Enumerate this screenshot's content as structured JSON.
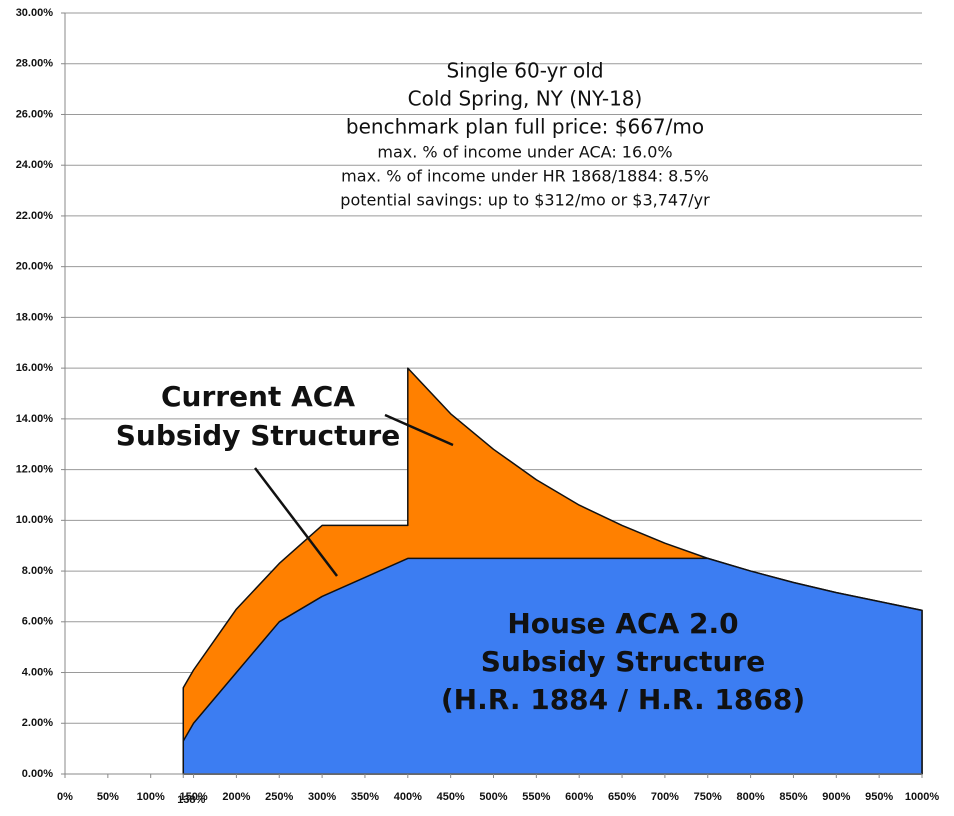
{
  "chart_data": {
    "type": "area",
    "ylim": [
      0,
      30
    ],
    "yticks": [
      {
        "value": 0,
        "label": "0.00%"
      },
      {
        "value": 2,
        "label": "2.00%"
      },
      {
        "value": 4,
        "label": "4.00%"
      },
      {
        "value": 6,
        "label": "6.00%"
      },
      {
        "value": 8,
        "label": "8.00%"
      },
      {
        "value": 10,
        "label": "10.00%"
      },
      {
        "value": 12,
        "label": "12.00%"
      },
      {
        "value": 14,
        "label": "14.00%"
      },
      {
        "value": 16,
        "label": "16.00%"
      },
      {
        "value": 18,
        "label": "18.00%"
      },
      {
        "value": 20,
        "label": "20.00%"
      },
      {
        "value": 22,
        "label": "22.00%"
      },
      {
        "value": 24,
        "label": "24.00%"
      },
      {
        "value": 26,
        "label": "26.00%"
      },
      {
        "value": 28,
        "label": "28.00%"
      },
      {
        "value": 30,
        "label": "30.00%"
      }
    ],
    "xlim": [
      0,
      1000
    ],
    "xticks": [
      {
        "value": 0,
        "label": "0%"
      },
      {
        "value": 50,
        "label": "50%"
      },
      {
        "value": 100,
        "label": "100%"
      },
      {
        "value": 138,
        "label": "138%"
      },
      {
        "value": 150,
        "label": "150%"
      },
      {
        "value": 200,
        "label": "200%"
      },
      {
        "value": 250,
        "label": "250%"
      },
      {
        "value": 300,
        "label": "300%"
      },
      {
        "value": 350,
        "label": "350%"
      },
      {
        "value": 400,
        "label": "400%"
      },
      {
        "value": 450,
        "label": "450%"
      },
      {
        "value": 500,
        "label": "500%"
      },
      {
        "value": 550,
        "label": "550%"
      },
      {
        "value": 600,
        "label": "600%"
      },
      {
        "value": 650,
        "label": "650%"
      },
      {
        "value": 700,
        "label": "700%"
      },
      {
        "value": 750,
        "label": "750%"
      },
      {
        "value": 800,
        "label": "800%"
      },
      {
        "value": 850,
        "label": "850%"
      },
      {
        "value": 900,
        "label": "900%"
      },
      {
        "value": 950,
        "label": "950%"
      },
      {
        "value": 1000,
        "label": "1000%"
      }
    ],
    "grid": true,
    "series": [
      {
        "color": "#ff8000",
        "x": [
          138,
          150,
          200,
          250,
          300,
          350,
          400,
          400,
          450,
          500,
          550,
          600,
          650,
          700,
          750,
          800,
          850,
          900,
          950,
          1000
        ],
        "values": [
          3.4,
          4.1,
          6.5,
          8.3,
          9.8,
          9.8,
          9.8,
          16.0,
          14.2,
          12.8,
          11.6,
          10.6,
          9.8,
          9.1,
          8.5,
          8.0,
          7.55,
          7.15,
          6.8,
          6.45
        ]
      },
      {
        "color": "#3c7df2",
        "x": [
          138,
          150,
          200,
          250,
          300,
          350,
          400,
          450,
          500,
          550,
          600,
          650,
          700,
          750,
          800,
          850,
          900,
          950,
          1000
        ],
        "values": [
          1.3,
          2.0,
          4.0,
          6.0,
          7.0,
          7.75,
          8.5,
          8.5,
          8.5,
          8.5,
          8.5,
          8.5,
          8.5,
          8.5,
          8.0,
          7.55,
          7.15,
          6.8,
          6.45
        ]
      }
    ],
    "annotations": [
      {
        "lines": [
          "Single 60-yr old",
          "Cold Spring, NY (NY-18)",
          "benchmark plan full price: $667/mo",
          "max. % of income under ACA: 16.0%",
          "max. % of income under HR 1868/1884: 8.5%",
          "potential savings: up to $312/mo or $3,747/yr"
        ]
      },
      {
        "lines": [
          "Current ACA",
          "Subsidy Structure"
        ]
      },
      {
        "lines": [
          "House ACA 2.0",
          "Subsidy Structure",
          "(H.R. 1884 / H.R. 1868)"
        ]
      }
    ]
  }
}
